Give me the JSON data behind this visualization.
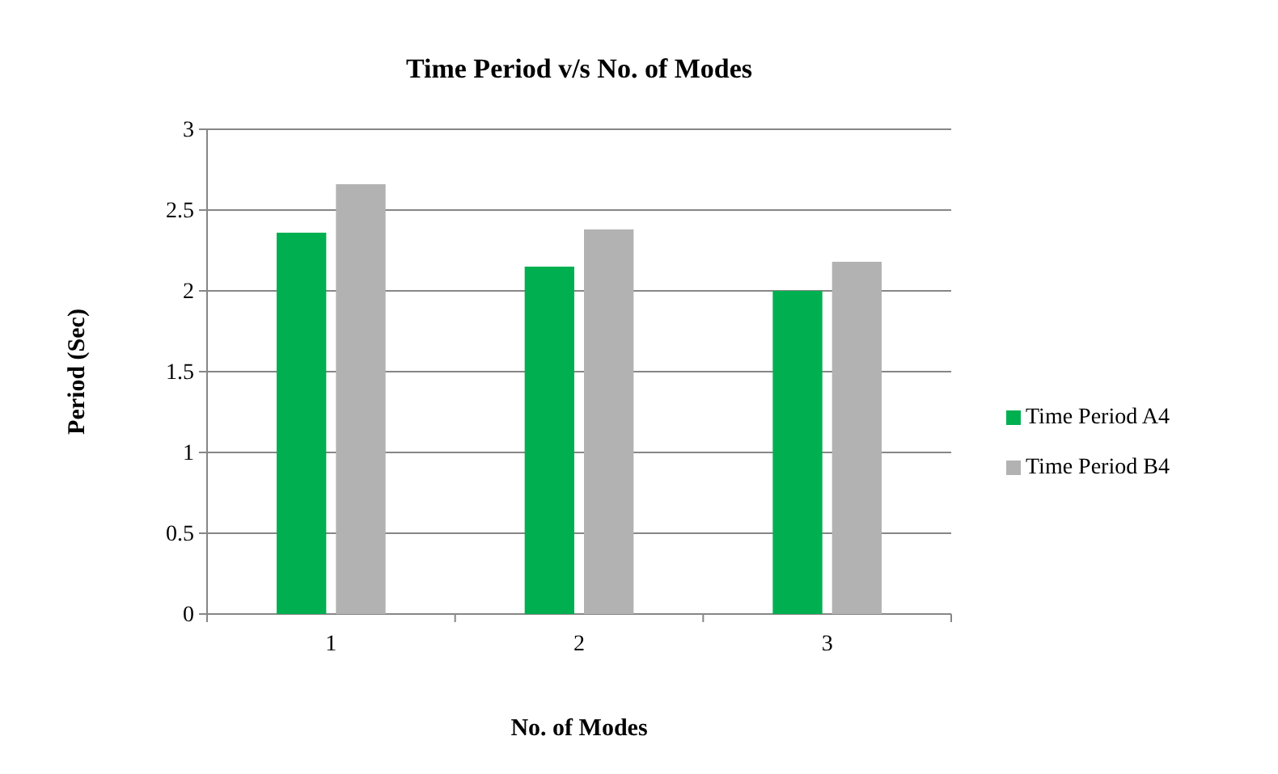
{
  "chart_data": {
    "type": "bar",
    "title": "Time Period v/s No. of Modes",
    "xlabel": "No. of Modes",
    "ylabel": "Period (Sec)",
    "categories": [
      "1",
      "2",
      "3"
    ],
    "series": [
      {
        "name": "Time Period A4",
        "color": "#00b050",
        "values": [
          2.36,
          2.15,
          2.0
        ]
      },
      {
        "name": "Time Period B4",
        "color": "#b2b2b2",
        "values": [
          2.66,
          2.38,
          2.18
        ]
      }
    ],
    "ylim": [
      0,
      3
    ],
    "yticks": [
      0,
      0.5,
      1,
      1.5,
      2,
      2.5,
      3
    ],
    "grid": "y",
    "legend": "right"
  }
}
